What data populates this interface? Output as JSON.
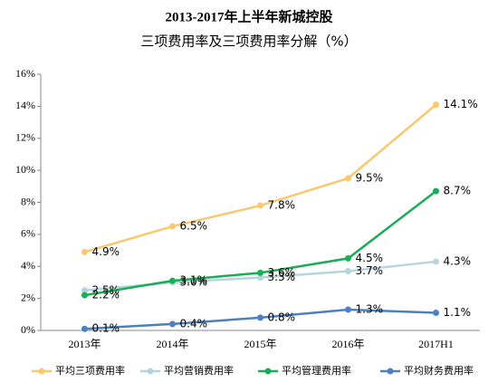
{
  "chart_data": {
    "type": "line",
    "title": "2013-2017年上半年新城控股",
    "subtitle": "三项费用率及三项费用率分解（%）",
    "categories": [
      "2013年",
      "2014年",
      "2015年",
      "2016年",
      "2017H1"
    ],
    "ylim": [
      0,
      16
    ],
    "yticks": [
      {
        "value": 0,
        "label": "0%"
      },
      {
        "value": 2,
        "label": "2%"
      },
      {
        "value": 4,
        "label": "4%"
      },
      {
        "value": 6,
        "label": "6%"
      },
      {
        "value": 8,
        "label": "8%"
      },
      {
        "value": 10,
        "label": "10%"
      },
      {
        "value": 12,
        "label": "12%"
      },
      {
        "value": 14,
        "label": "14%"
      },
      {
        "value": 16,
        "label": "16%"
      }
    ],
    "legend": "bottom",
    "series": [
      {
        "name": "平均三项费用率",
        "color": "#fac86e",
        "values": [
          4.9,
          6.5,
          7.8,
          9.5,
          14.1
        ],
        "value_labels": [
          "4.9%",
          "6.5%",
          "7.8%",
          "9.5%",
          "14.1%"
        ]
      },
      {
        "name": "平均营销费用率",
        "color": "#b5d5dc",
        "values": [
          2.5,
          3.0,
          3.3,
          3.7,
          4.3
        ],
        "value_labels": [
          "2.5%",
          "3.0%",
          "3.3%",
          "3.7%",
          "4.3%"
        ]
      },
      {
        "name": "平均管理费用率",
        "color": "#1aad55",
        "values": [
          2.2,
          3.1,
          3.6,
          4.5,
          8.7
        ],
        "value_labels": [
          "2.2%",
          "3.1%",
          "3.6%",
          "4.5%",
          "8.7%"
        ]
      },
      {
        "name": "平均财务费用率",
        "color": "#4d80c0",
        "values": [
          0.1,
          0.4,
          0.8,
          1.3,
          1.1
        ],
        "value_labels": [
          "0.1%",
          "0.4%",
          "0.8%",
          "1.3%",
          "1.1%"
        ]
      }
    ]
  }
}
